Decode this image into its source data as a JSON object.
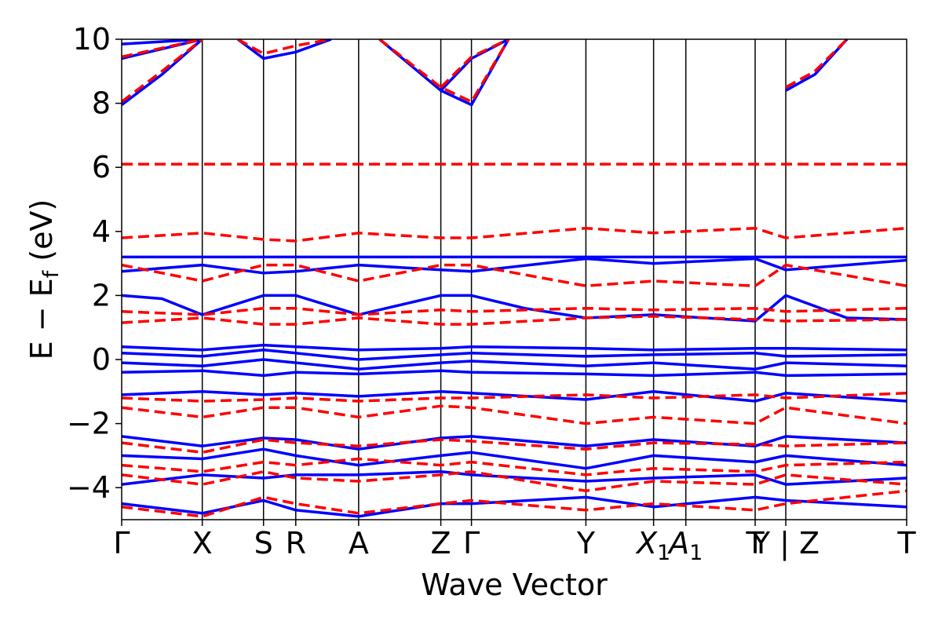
{
  "chart_data": {
    "type": "line",
    "title": "",
    "xlabel": "Wave Vector",
    "ylabel": "E − E_f (eV)",
    "ylabel_parts": {
      "main": "E − E",
      "sub": "f",
      "unit": " (eV)"
    },
    "ylim": [
      -5,
      10
    ],
    "yticks": [
      -4,
      -2,
      0,
      2,
      4,
      6,
      8,
      10
    ],
    "ytick_labels": [
      "−4",
      "−2",
      "0",
      "2",
      "4",
      "6",
      "8",
      "10"
    ],
    "grid": false,
    "legend": "none",
    "kpath_positions": [
      0,
      0.5,
      0.88,
      1.08,
      1.47,
      1.98,
      2.17,
      2.88,
      3.3,
      3.5,
      3.93,
      4.12,
      4.87
    ],
    "kpath_labels": [
      {
        "k": 0,
        "text": "Γ"
      },
      {
        "k": 0.5,
        "text": "X"
      },
      {
        "k": 0.88,
        "text": "S"
      },
      {
        "k": 1.08,
        "text": "R"
      },
      {
        "k": 1.47,
        "text": "A"
      },
      {
        "k": 1.98,
        "text": "Z"
      },
      {
        "k": 2.17,
        "text": "Γ"
      },
      {
        "k": 2.88,
        "text": "Y"
      },
      {
        "k": 3.3,
        "text": "X",
        "sub": "1"
      },
      {
        "k": 3.5,
        "text": "A",
        "sub": "1"
      },
      {
        "k": 3.93,
        "text": "T"
      },
      {
        "k": 4.12,
        "text": "Y | Z"
      },
      {
        "k": 4.87,
        "text": "T"
      }
    ],
    "xlim": [
      0,
      4.87
    ],
    "series": [
      {
        "style": "solid",
        "color": "#0000ff",
        "bands": [
          {
            "x": [
              0,
              4.87
            ],
            "y": [
              3.2,
              3.2
            ]
          },
          {
            "x": [
              0,
              0.5,
              0.88,
              1.08,
              1.47,
              1.98,
              2.17,
              2.88,
              3.3,
              3.93,
              4.12,
              4.87
            ],
            "y": [
              2.75,
              2.95,
              2.7,
              2.75,
              2.95,
              2.8,
              2.75,
              3.15,
              3.0,
              3.15,
              2.8,
              3.1
            ]
          },
          {
            "x": [
              0,
              0.25,
              0.5,
              0.88,
              1.08,
              1.47,
              1.98,
              2.17,
              2.5,
              2.88,
              3.3,
              3.93,
              4.12,
              4.5,
              4.87
            ],
            "y": [
              2.0,
              1.9,
              1.4,
              2.0,
              2.0,
              1.4,
              2.0,
              2.0,
              1.6,
              1.3,
              1.4,
              1.2,
              2.0,
              1.3,
              1.25
            ]
          },
          {
            "x": [
              0,
              0.5,
              0.88,
              1.08,
              1.47,
              1.98,
              2.17,
              2.88,
              3.3,
              3.93,
              4.12,
              4.87
            ],
            "y": [
              0.4,
              0.3,
              0.45,
              0.4,
              0.3,
              0.35,
              0.4,
              0.35,
              0.3,
              0.35,
              0.35,
              0.3
            ]
          },
          {
            "x": [
              0,
              0.5,
              0.88,
              1.08,
              1.47,
              1.98,
              2.17,
              2.88,
              3.3,
              3.93,
              4.12,
              4.87
            ],
            "y": [
              0.2,
              0.1,
              0.3,
              0.2,
              0.0,
              0.15,
              0.2,
              0.1,
              0.15,
              0.2,
              0.1,
              0.15
            ]
          },
          {
            "x": [
              0,
              0.5,
              0.88,
              1.08,
              1.47,
              1.98,
              2.17,
              2.88,
              3.3,
              3.93,
              4.12,
              4.87
            ],
            "y": [
              -0.1,
              -0.2,
              0.0,
              -0.1,
              -0.3,
              -0.1,
              -0.05,
              -0.2,
              -0.1,
              -0.3,
              -0.1,
              -0.2
            ]
          },
          {
            "x": [
              0,
              0.5,
              0.88,
              1.08,
              1.47,
              1.98,
              2.17,
              2.88,
              3.3,
              3.93,
              4.12,
              4.87
            ],
            "y": [
              -0.4,
              -0.35,
              -0.5,
              -0.4,
              -0.45,
              -0.35,
              -0.4,
              -0.45,
              -0.5,
              -0.4,
              -0.5,
              -0.45
            ]
          },
          {
            "x": [
              0,
              0.5,
              0.88,
              1.08,
              1.47,
              1.98,
              2.17,
              2.88,
              3.3,
              3.93,
              4.12,
              4.87
            ],
            "y": [
              -1.1,
              -1.0,
              -1.1,
              -1.05,
              -1.15,
              -1.0,
              -1.05,
              -1.25,
              -1.0,
              -1.3,
              -1.05,
              -1.3
            ]
          },
          {
            "x": [
              0,
              0.5,
              0.88,
              1.08,
              1.47,
              1.98,
              2.17,
              2.88,
              3.3,
              3.93,
              4.12,
              4.87
            ],
            "y": [
              -2.4,
              -2.7,
              -2.45,
              -2.5,
              -2.8,
              -2.45,
              -2.4,
              -2.7,
              -2.5,
              -2.7,
              -2.4,
              -2.6
            ]
          },
          {
            "x": [
              0,
              0.5,
              0.88,
              1.08,
              1.47,
              1.98,
              2.17,
              2.88,
              3.3,
              3.93,
              4.12,
              4.87
            ],
            "y": [
              -3.0,
              -3.1,
              -2.8,
              -3.0,
              -3.3,
              -3.0,
              -2.9,
              -3.4,
              -3.0,
              -3.2,
              -3.0,
              -3.3
            ]
          },
          {
            "x": [
              0,
              0.5,
              0.88,
              1.08,
              1.47,
              1.98,
              2.17,
              2.88,
              3.3,
              3.93,
              4.12,
              4.87
            ],
            "y": [
              -3.9,
              -3.6,
              -3.7,
              -3.6,
              -3.6,
              -3.5,
              -3.6,
              -3.8,
              -3.7,
              -3.6,
              -3.9,
              -3.7
            ]
          },
          {
            "x": [
              0,
              0.5,
              0.88,
              1.08,
              1.47,
              1.98,
              2.17,
              2.88,
              3.3,
              3.93,
              4.12,
              4.87
            ],
            "y": [
              -4.5,
              -4.8,
              -4.4,
              -4.7,
              -4.9,
              -4.5,
              -4.5,
              -4.3,
              -4.6,
              -4.3,
              -4.4,
              -4.6
            ]
          },
          {
            "x": [
              0,
              0.25,
              0.5
            ],
            "y": [
              7.95,
              8.9,
              10.0
            ]
          },
          {
            "x": [
              0,
              0.5
            ],
            "y": [
              9.4,
              10.0
            ]
          },
          {
            "x": [
              0,
              0.5
            ],
            "y": [
              9.85,
              10.0
            ]
          },
          {
            "x": [
              0.72,
              0.88,
              1.08,
              1.3
            ],
            "y": [
              10.0,
              9.4,
              9.6,
              10.0
            ]
          },
          {
            "x": [
              1.6,
              1.98,
              2.17,
              2.4
            ],
            "y": [
              10.0,
              8.4,
              7.95,
              10.0
            ]
          },
          {
            "x": [
              1.98,
              2.17,
              2.4
            ],
            "y": [
              8.4,
              9.4,
              10.0
            ]
          },
          {
            "x": [
              4.12,
              4.3,
              4.5
            ],
            "y": [
              8.4,
              8.9,
              10.0
            ]
          }
        ]
      },
      {
        "style": "dashed",
        "color": "#ff0000",
        "bands": [
          {
            "x": [
              0,
              4.87
            ],
            "y": [
              6.1,
              6.1
            ]
          },
          {
            "x": [
              0,
              0.5,
              0.88,
              1.08,
              1.47,
              1.98,
              2.17,
              2.88,
              3.3,
              3.93,
              4.12,
              4.87
            ],
            "y": [
              3.8,
              3.95,
              3.75,
              3.7,
              3.95,
              3.8,
              3.8,
              4.1,
              3.95,
              4.1,
              3.8,
              4.1
            ]
          },
          {
            "x": [
              0,
              0.5,
              0.88,
              1.08,
              1.47,
              1.98,
              2.17,
              2.88,
              3.3,
              3.93,
              4.12,
              4.87
            ],
            "y": [
              2.95,
              2.45,
              2.95,
              2.95,
              2.45,
              2.95,
              2.95,
              2.3,
              2.45,
              2.3,
              2.95,
              2.3
            ]
          },
          {
            "x": [
              0,
              0.5,
              0.88,
              1.08,
              1.47,
              1.98,
              2.17,
              2.88,
              3.3,
              3.93,
              4.12,
              4.87
            ],
            "y": [
              1.5,
              1.4,
              1.6,
              1.6,
              1.4,
              1.55,
              1.5,
              1.6,
              1.55,
              1.6,
              1.5,
              1.6
            ]
          },
          {
            "x": [
              0,
              0.5,
              0.88,
              1.08,
              1.47,
              1.98,
              2.17,
              2.88,
              3.3,
              3.93,
              4.12,
              4.87
            ],
            "y": [
              1.15,
              1.3,
              1.1,
              1.1,
              1.3,
              1.1,
              1.1,
              1.3,
              1.35,
              1.25,
              1.2,
              1.25
            ]
          },
          {
            "x": [
              0,
              0.5,
              0.88,
              1.08,
              1.47,
              1.98,
              2.17,
              2.88,
              3.3,
              3.93,
              4.12,
              4.87
            ],
            "y": [
              -1.2,
              -1.3,
              -1.25,
              -1.2,
              -1.3,
              -1.2,
              -1.2,
              -1.1,
              -1.2,
              -1.1,
              -1.2,
              -1.05
            ]
          },
          {
            "x": [
              0,
              0.5,
              0.88,
              1.08,
              1.47,
              1.98,
              2.17,
              2.88,
              3.3,
              3.93,
              4.12,
              4.87
            ],
            "y": [
              -1.5,
              -1.8,
              -1.5,
              -1.5,
              -1.8,
              -1.45,
              -1.5,
              -2.0,
              -1.8,
              -2.0,
              -1.5,
              -2.0
            ]
          },
          {
            "x": [
              0,
              0.5,
              0.88,
              1.08,
              1.47,
              1.98,
              2.17,
              2.88,
              3.3,
              3.93,
              4.12,
              4.87
            ],
            "y": [
              -2.6,
              -2.9,
              -2.5,
              -2.6,
              -2.7,
              -2.5,
              -2.55,
              -2.8,
              -2.6,
              -2.65,
              -2.7,
              -2.6
            ]
          },
          {
            "x": [
              0,
              0.5,
              0.88,
              1.08,
              1.47,
              1.98,
              2.17,
              2.88,
              3.3,
              3.93,
              4.12,
              4.87
            ],
            "y": [
              -3.3,
              -3.5,
              -3.2,
              -3.3,
              -3.1,
              -3.3,
              -3.2,
              -3.6,
              -3.4,
              -3.5,
              -3.3,
              -3.2
            ]
          },
          {
            "x": [
              0,
              0.5,
              0.88,
              1.08,
              1.47,
              1.98,
              2.17,
              2.88,
              3.3,
              3.93,
              4.12,
              4.87
            ],
            "y": [
              -3.6,
              -3.9,
              -3.5,
              -3.7,
              -3.8,
              -3.6,
              -3.5,
              -4.1,
              -3.8,
              -3.9,
              -3.6,
              -3.9
            ]
          },
          {
            "x": [
              0,
              0.5,
              0.88,
              1.08,
              1.47,
              1.98,
              2.17,
              2.88,
              3.3,
              3.93,
              4.12,
              4.87
            ],
            "y": [
              -4.6,
              -4.9,
              -4.3,
              -4.5,
              -4.8,
              -4.5,
              -4.4,
              -4.7,
              -4.5,
              -4.7,
              -4.5,
              -4.1
            ]
          },
          {
            "x": [
              0,
              0.25,
              0.5
            ],
            "y": [
              8.05,
              9.0,
              10.0
            ]
          },
          {
            "x": [
              0,
              0.5
            ],
            "y": [
              9.45,
              10.0
            ]
          },
          {
            "x": [
              0.72,
              0.88,
              1.08,
              1.3
            ],
            "y": [
              10.0,
              9.55,
              9.8,
              10.0
            ]
          },
          {
            "x": [
              1.6,
              1.98,
              2.17,
              2.4
            ],
            "y": [
              10.0,
              8.5,
              8.05,
              10.0
            ]
          },
          {
            "x": [
              1.98,
              2.17,
              2.4
            ],
            "y": [
              8.5,
              9.45,
              10.0
            ]
          },
          {
            "x": [
              4.12,
              4.3,
              4.5
            ],
            "y": [
              8.5,
              9.0,
              10.0
            ]
          }
        ]
      }
    ]
  }
}
